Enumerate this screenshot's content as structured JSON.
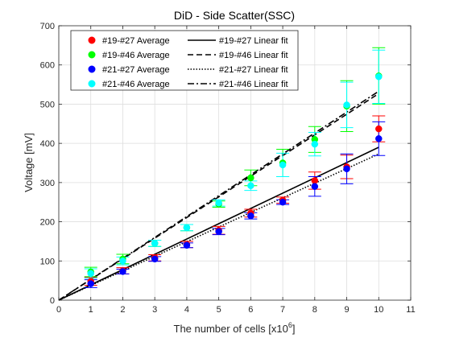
{
  "chart_data": {
    "type": "scatter",
    "title": "DiD - Side Scatter(SSC)",
    "xlabel": "The number of cells [x10",
    "xlabel_superscript": "6",
    "xlabel_suffix": "]",
    "ylabel": "Voltage [mV]",
    "xlim": [
      0,
      11
    ],
    "ylim": [
      0,
      700
    ],
    "xticks": [
      0,
      1,
      2,
      3,
      4,
      5,
      6,
      7,
      8,
      9,
      10,
      11
    ],
    "yticks": [
      0,
      100,
      200,
      300,
      400,
      500,
      600,
      700
    ],
    "grid": true,
    "legend_position": "top-left",
    "x": [
      1,
      2,
      3,
      4,
      5,
      6,
      7,
      8,
      9,
      10
    ],
    "series": [
      {
        "name": "#19-#27 Average",
        "color": "#ff0000",
        "marker": "circle",
        "values": [
          48,
          75,
          108,
          142,
          178,
          222,
          255,
          305,
          340,
          437
        ],
        "errors": [
          10,
          8,
          8,
          8,
          10,
          10,
          8,
          22,
          30,
          33
        ]
      },
      {
        "name": "#19-#46 Average",
        "color": "#00ff00",
        "marker": "circle",
        "values": [
          72,
          105,
          145,
          185,
          245,
          312,
          350,
          410,
          495,
          572
        ],
        "errors": [
          12,
          12,
          8,
          8,
          8,
          20,
          35,
          33,
          65,
          72
        ]
      },
      {
        "name": "#21-#27 Average",
        "color": "#0000ff",
        "marker": "circle",
        "values": [
          42,
          73,
          105,
          140,
          175,
          215,
          250,
          290,
          335,
          412
        ],
        "errors": [
          10,
          6,
          6,
          6,
          8,
          8,
          6,
          25,
          38,
          43
        ]
      },
      {
        "name": "#21-#46 Average",
        "color": "#00ffff",
        "marker": "circle",
        "values": [
          68,
          100,
          145,
          185,
          248,
          292,
          345,
          398,
          498,
          570
        ],
        "errors": [
          12,
          10,
          8,
          8,
          8,
          12,
          30,
          30,
          58,
          68
        ]
      }
    ],
    "fits": [
      {
        "name": "#19-#27 Linear fit",
        "style": "solid",
        "x": [
          0,
          10
        ],
        "values": [
          0,
          390
        ]
      },
      {
        "name": "#19-#46 Linear fit",
        "style": "dashed",
        "x": [
          0,
          10
        ],
        "values": [
          0,
          527
        ]
      },
      {
        "name": "#21-#27 Linear fit",
        "style": "dotted",
        "x": [
          0,
          10
        ],
        "values": [
          0,
          373
        ]
      },
      {
        "name": "#21-#46 Linear fit",
        "style": "dashdot",
        "x": [
          0,
          10
        ],
        "values": [
          0,
          533
        ]
      }
    ]
  }
}
